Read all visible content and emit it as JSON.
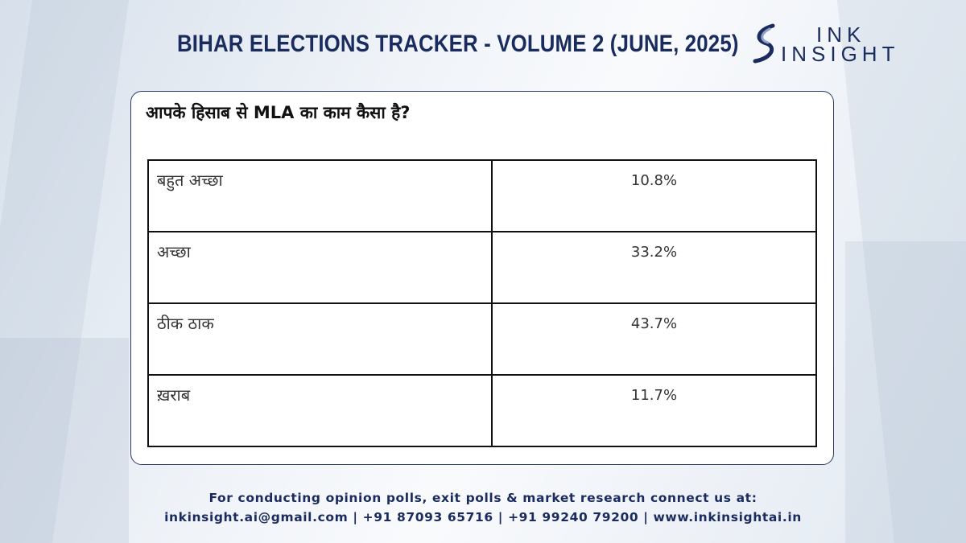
{
  "header": {
    "title": "BIHAR ELECTIONS TRACKER - VOLUME 2 (JUNE, 2025)"
  },
  "logo": {
    "line1": "INK",
    "line2": "INSIGHT",
    "brand_color": "#1a2b5e"
  },
  "card": {
    "question": "आपके हिसाब से  MLA का काम कैसा है?",
    "rows": [
      {
        "label": "बहुत अच्छा",
        "value": "10.8%"
      },
      {
        "label": "अच्छा",
        "value": "33.2%"
      },
      {
        "label": "ठीक ठाक",
        "value": "43.7%"
      },
      {
        "label": "ख़राब",
        "value": "11.7%"
      }
    ]
  },
  "footer": {
    "line1": "For conducting opinion polls, exit polls & market research connect us at:",
    "line2": "inkinsight.ai@gmail.com | +91 87093 65716 | +91 99240 79200 | www.inkinsightai.in"
  }
}
